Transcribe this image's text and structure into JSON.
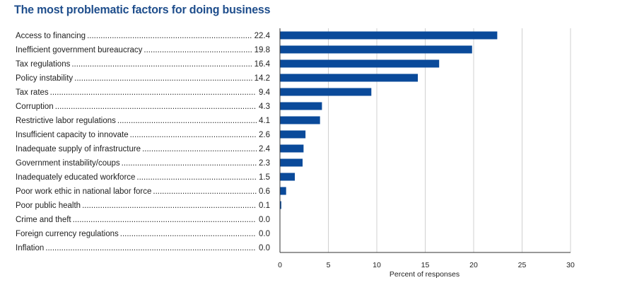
{
  "chart_data": {
    "type": "bar",
    "orientation": "horizontal",
    "title": "The most problematic factors for doing business",
    "xlabel": "Percent of responses",
    "xlim": [
      0,
      30
    ],
    "xticks": [
      "0",
      "5",
      "10",
      "15",
      "20",
      "25",
      "30"
    ],
    "grid": true,
    "bar_color": "#0a4a9a",
    "title_color": "#1f4e8c",
    "categories": [
      "Access to financing",
      "Inefficient government bureaucracy",
      "Tax regulations",
      "Policy instability",
      "Tax rates",
      "Corruption",
      "Restrictive labor regulations",
      "Insufficient capacity to innovate",
      "Inadequate supply of infrastructure",
      "Government instability/coups",
      "Inadequately educated workforce",
      "Poor work ethic in national labor force",
      "Poor public health",
      "Crime and theft",
      "Foreign currency regulations",
      "Inflation"
    ],
    "values": [
      22.4,
      19.8,
      16.4,
      14.2,
      9.4,
      4.3,
      4.1,
      2.6,
      2.4,
      2.3,
      1.5,
      0.6,
      0.1,
      0.0,
      0.0,
      0.0
    ],
    "value_labels": [
      "22.4",
      "19.8",
      "16.4",
      "14.2",
      "9.4",
      "4.3",
      "4.1",
      "2.6",
      "2.4",
      "2.3",
      "1.5",
      "0.6",
      "0.1",
      "0.0",
      "0.0",
      "0.0"
    ]
  }
}
